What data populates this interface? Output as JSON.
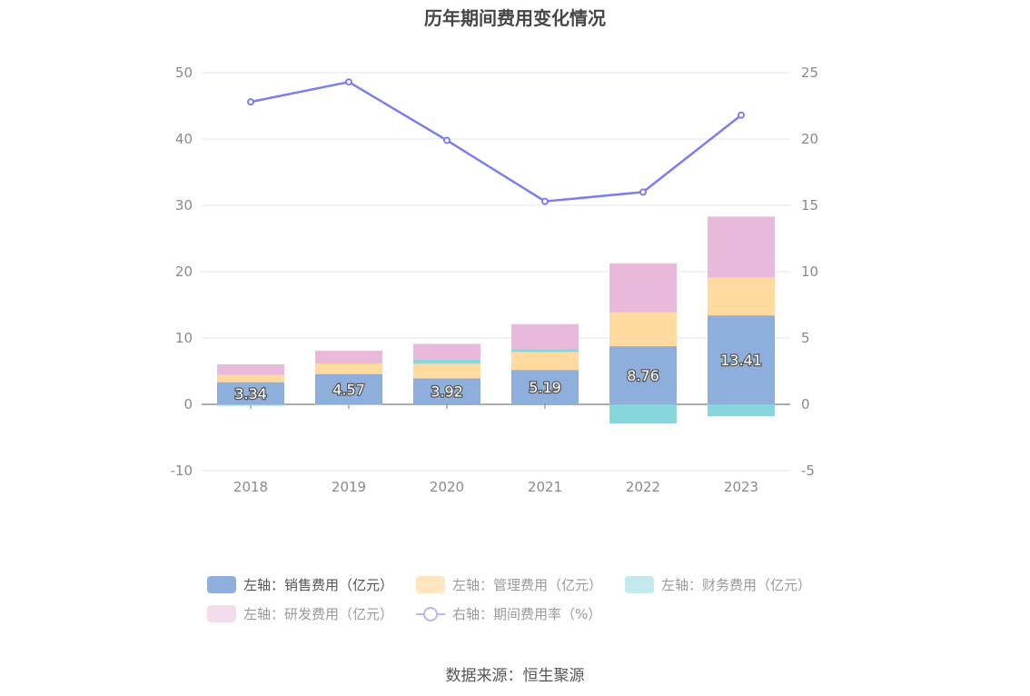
{
  "title": "历年期间费用变化情况",
  "source": "数据来源：恒生聚源",
  "colors": {
    "sales": "#8eafdb",
    "admin": "#ffd99e",
    "finance": "#86d6db",
    "rd": "#e8b9da",
    "rate": "#7b7ef0"
  },
  "legend": [
    {
      "label": "左轴：销售费用（亿元）",
      "color": "#8eafdb",
      "kind": "box",
      "active": true
    },
    {
      "label": "左轴：管理费用（亿元）",
      "color": "#ffe6c0",
      "kind": "box",
      "active": false
    },
    {
      "label": "左轴：财务费用（亿元）",
      "color": "#c3e9ec",
      "kind": "box",
      "active": false
    },
    {
      "label": "左轴：研发费用（亿元）",
      "color": "#f3dcec",
      "kind": "box",
      "active": false
    },
    {
      "label": "右轴：期间费用率（%）",
      "color": "#b3b8f5",
      "kind": "line",
      "active": false
    }
  ],
  "chart_data": {
    "type": "bar",
    "stacked": true,
    "categories": [
      "2018",
      "2019",
      "2020",
      "2021",
      "2022",
      "2023"
    ],
    "series": [
      {
        "name": "左轴：销售费用（亿元）",
        "axis": "left",
        "values": [
          3.34,
          4.57,
          3.92,
          5.19,
          8.76,
          13.41
        ],
        "labels": [
          "3.34",
          "4.57",
          "3.92",
          "5.19",
          "8.76",
          "13.41"
        ]
      },
      {
        "name": "左轴：管理费用（亿元）",
        "axis": "left",
        "values": [
          1.1,
          1.6,
          2.2,
          2.7,
          5.1,
          5.7
        ]
      },
      {
        "name": "左轴：财务费用（亿元）",
        "axis": "left",
        "values": [
          -0.2,
          -0.1,
          0.6,
          0.4,
          -2.9,
          -1.8
        ]
      },
      {
        "name": "左轴：研发费用（亿元）",
        "axis": "left",
        "values": [
          1.6,
          1.9,
          2.4,
          3.8,
          7.4,
          9.2
        ]
      },
      {
        "name": "右轴：期间费用率（%）",
        "axis": "right",
        "type": "line",
        "values": [
          22.8,
          24.3,
          19.9,
          15.3,
          16.0,
          21.8
        ]
      }
    ],
    "left_axis": {
      "ylim": [
        -10,
        50
      ],
      "ticks": [
        "-10",
        "0",
        "10",
        "20",
        "30",
        "40",
        "50"
      ]
    },
    "right_axis": {
      "ylim": [
        -5,
        25
      ],
      "ticks": [
        "-5",
        "0",
        "5",
        "10",
        "15",
        "20",
        "25"
      ]
    },
    "grid": true,
    "legend_position": "bottom"
  }
}
